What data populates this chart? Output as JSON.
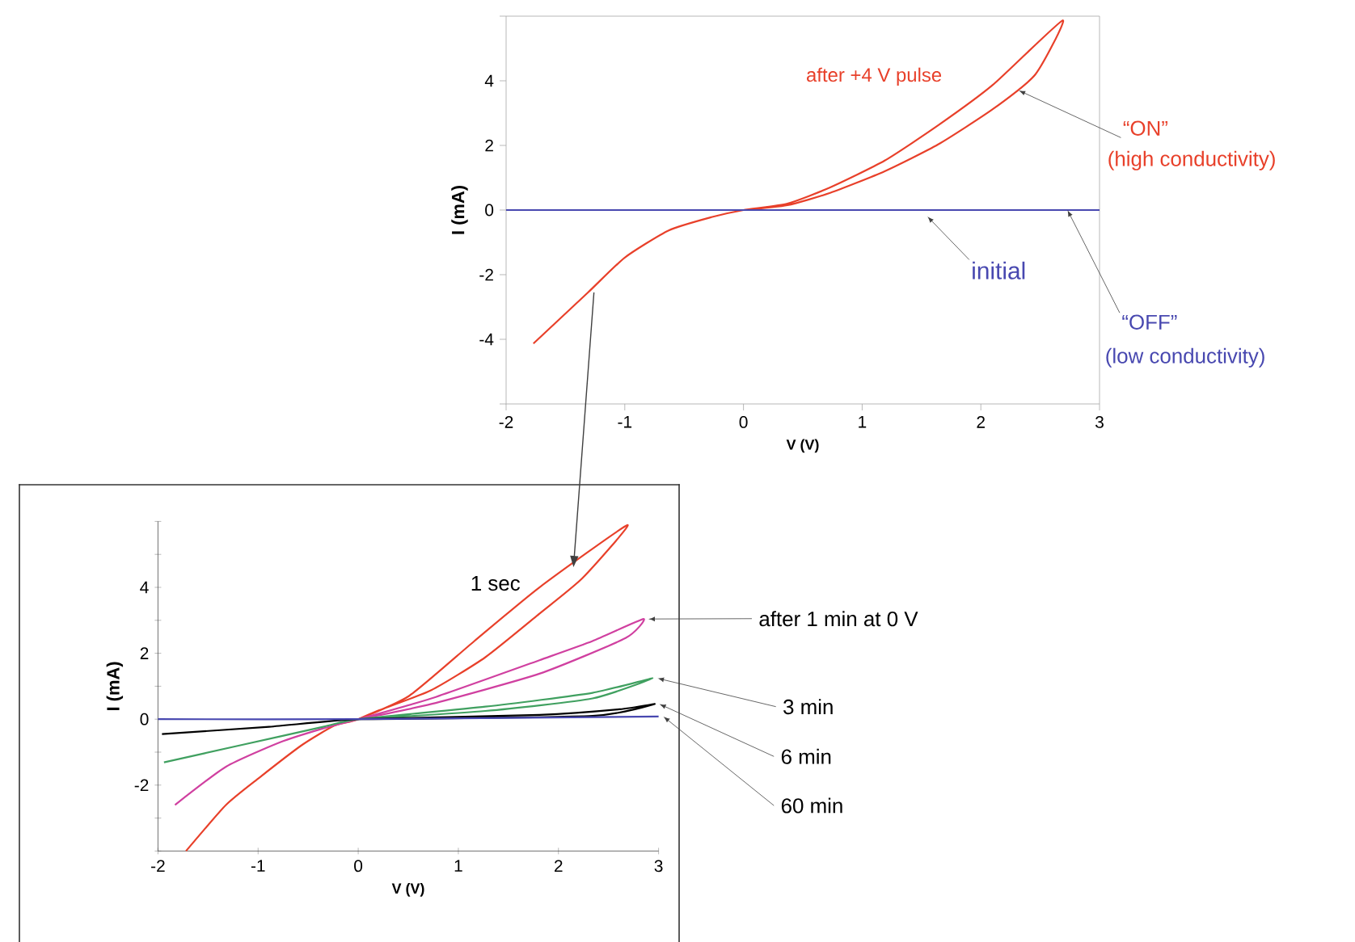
{
  "chart_data": [
    {
      "type": "line",
      "xlabel": "V (V)",
      "ylabel": "I (mA)",
      "xlim": [
        -2,
        3
      ],
      "ylim": [
        -6,
        6
      ],
      "xticks": [
        -2,
        -1,
        0,
        1,
        2,
        3
      ],
      "yticks": [
        {
          "value": -6,
          "label": null
        },
        -4,
        -2,
        0,
        2,
        4,
        {
          "value": 6,
          "label": null
        }
      ],
      "series": [
        {
          "name": "after +4 V pulse",
          "color": "#e8402a",
          "x": [
            -1.77,
            -1.31,
            -1.0,
            -0.63,
            -0.27,
            0,
            0.37,
            0.73,
            1.19,
            1.64,
            2.1,
            2.69,
            2.46,
            2.1,
            1.64,
            1.19,
            0.73,
            0.37,
            0
          ],
          "values": [
            -4.13,
            -2.55,
            -1.47,
            -0.63,
            -0.22,
            0,
            0.2,
            0.7,
            1.53,
            2.62,
            3.87,
            5.87,
            4.2,
            3.12,
            2.03,
            1.2,
            0.53,
            0.15,
            0
          ]
        },
        {
          "name": "initial",
          "color": "#4848b0",
          "x": [
            -2,
            3
          ],
          "values": [
            0,
            0
          ]
        }
      ],
      "annotations": [
        {
          "text": "“ON”",
          "x": 2.32,
          "y": 3.7
        },
        "(high conductivity)",
        {
          "text": "“OFF”",
          "x": 2.73,
          "y": 0
        },
        "(low conductivity)"
      ]
    },
    {
      "type": "line",
      "xlabel": "V (V)",
      "ylabel": "I (mA)",
      "xlim": [
        -2,
        3
      ],
      "ylim": [
        -4,
        6
      ],
      "xticks": [
        -2,
        -1,
        0,
        1,
        2,
        3
      ],
      "yticks": [
        {
          "value": -4,
          "label": null
        },
        {
          "value": -3,
          "label": null
        },
        -2,
        {
          "value": -1,
          "label": null
        },
        0,
        {
          "value": 1,
          "label": null
        },
        2,
        {
          "value": 3,
          "label": null
        },
        4,
        {
          "value": 5,
          "label": null
        },
        {
          "value": 6,
          "label": null
        }
      ],
      "series": [
        {
          "name": "1 sec",
          "color": "#e8402a",
          "x": [
            -1.72,
            -1.32,
            -0.99,
            -0.56,
            -0.24,
            0,
            0.51,
            1.16,
            1.81,
            2.69,
            2.24,
            1.81,
            1.27,
            0.73,
            0.19,
            0
          ],
          "values": [
            -4,
            -2.6,
            -1.78,
            -0.78,
            -0.2,
            0,
            0.71,
            2.37,
            4.0,
            5.89,
            4.28,
            3.2,
            1.88,
            0.88,
            0.25,
            0
          ]
        },
        {
          "name": "after 1 min at 0 V",
          "color": "#d040a0",
          "x": [
            -1.83,
            -1.32,
            -0.78,
            -0.35,
            0,
            0.73,
            1.81,
            2.34,
            2.85,
            2.67,
            1.81,
            0.73,
            0
          ],
          "values": [
            -2.6,
            -1.44,
            -0.7,
            -0.28,
            0,
            0.63,
            1.79,
            2.37,
            3.04,
            2.46,
            1.38,
            0.46,
            0
          ]
        },
        {
          "name": "3 min",
          "color": "#40a060",
          "x": [
            -1.94,
            -1.16,
            -0.35,
            0,
            1.27,
            2.34,
            2.94,
            2.34,
            1.27,
            0
          ],
          "values": [
            -1.31,
            -0.78,
            -0.23,
            0,
            0.38,
            0.8,
            1.24,
            0.63,
            0.25,
            0
          ]
        },
        {
          "name": "6 min",
          "color": "#000000",
          "x": [
            -1.96,
            -0.89,
            0,
            1.81,
            2.61,
            2.96,
            2.34,
            0
          ],
          "values": [
            -0.45,
            -0.23,
            0,
            0.13,
            0.3,
            0.46,
            0.1,
            0
          ]
        },
        {
          "name": "60 min",
          "color": "#4848b0",
          "x": [
            -2,
            0,
            3
          ],
          "values": [
            0,
            0,
            0.08
          ]
        }
      ]
    }
  ]
}
